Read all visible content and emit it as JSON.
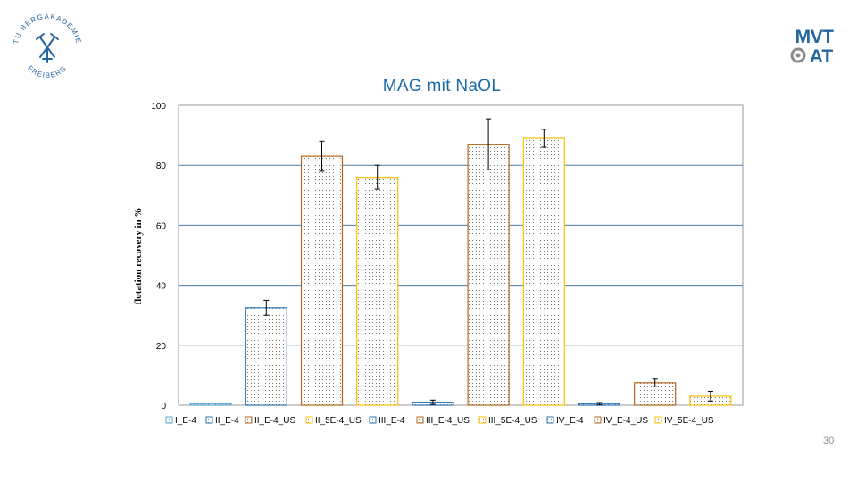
{
  "slide": {
    "page_number": "30"
  },
  "logos": {
    "left_text_top": "TU BERGAKADEMIE",
    "left_text_bottom": "FREIBERG",
    "right_line1": "MVT",
    "right_line2": "AT"
  },
  "colors": {
    "title": "#1a6ba8",
    "gridline": "#4a7ba6",
    "logo": "#27659e"
  },
  "chart_data": {
    "type": "bar",
    "title": "MAG mit NaOL",
    "xlabel": "",
    "ylabel": "flotation recovery in %",
    "ylim": [
      0,
      100
    ],
    "yticks": [
      0,
      20,
      40,
      60,
      80,
      100
    ],
    "grid": true,
    "legend_position": "bottom",
    "categories": [
      "I_E-4",
      "II_E-4",
      "II_E-4_US",
      "II_5E-4_US",
      "III_E-4",
      "III_E-4_US",
      "III_5E-4_US",
      "IV_E-4",
      "IV_E-4_US",
      "IV_5E-4_US"
    ],
    "values": [
      0.5,
      32.5,
      83,
      76,
      1,
      87,
      89,
      0.5,
      7.5,
      3
    ],
    "errors": [
      null,
      2.5,
      5,
      4,
      0.7,
      8.5,
      3,
      0.4,
      1.2,
      1.6
    ],
    "colors": [
      "#5aa6d6",
      "#2e75b6",
      "#b5651d",
      "#ffc000",
      "#2e75b6",
      "#b5651d",
      "#ffc000",
      "#2e75b6",
      "#b5651d",
      "#ffc000"
    ],
    "legend": [
      "I_E-4",
      "II_E-4",
      "II_E-4_US",
      "II_5E-4_US",
      "III_E-4",
      "III_E-4_US",
      "III_5E-4_US",
      "IV_E-4",
      "IV_E-4_US",
      "IV_5E-4_US"
    ]
  }
}
